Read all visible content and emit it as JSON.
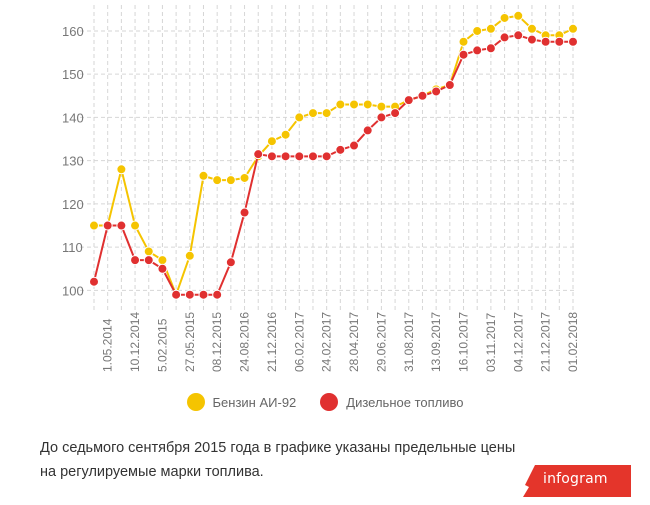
{
  "chart_data": {
    "type": "line",
    "ylim": [
      95,
      166
    ],
    "yticks": [
      100,
      110,
      120,
      130,
      140,
      150,
      160
    ],
    "x_tick_labels": [
      "1.05.2014",
      "10.12.2014",
      "5.02.2015",
      "27.05.2015",
      "08.12.2015",
      "24.08.2016",
      "21.12.2016",
      "06.02.2017",
      "24.02.2017",
      "28.04.2017",
      "29.06.2017",
      "31.08.2017",
      "13.09.2017",
      "16.10.2017",
      "03.11.2017",
      "04.12.2017",
      "21.12.2017",
      "01.02.2018"
    ],
    "grid": true,
    "legend_position": "bottom",
    "series": [
      {
        "name": "Бензин АИ-92",
        "color": "#f5c400",
        "values": [
          115,
          115,
          128,
          115,
          109,
          107,
          99,
          108,
          126.5,
          125.5,
          125.5,
          126,
          131,
          134.5,
          136,
          140,
          141,
          141,
          143,
          143,
          143,
          142.5,
          142.5,
          144,
          145,
          146.5,
          147.5,
          157.5,
          160,
          160.5,
          163,
          163.5,
          160.5,
          159,
          159,
          160.5
        ]
      },
      {
        "name": "Дизельное топливо",
        "color": "#e03030",
        "values": [
          102,
          115,
          115,
          107,
          107,
          105,
          99,
          99,
          99,
          99,
          106.5,
          118,
          131.5,
          131,
          131,
          131,
          131,
          131,
          132.5,
          133.5,
          137,
          140,
          141,
          144,
          145,
          146,
          147.5,
          154.5,
          155.5,
          156,
          158.5,
          159,
          158,
          157.5,
          157.5,
          157.5
        ]
      }
    ]
  },
  "legend": {
    "items": [
      {
        "label": "Бензин АИ-92",
        "color": "#f5c400"
      },
      {
        "label": "Дизельное топливо",
        "color": "#e03030"
      }
    ]
  },
  "caption": {
    "text_line1": "До седьмого сентября 2015 года в графике указаны предельные цены",
    "text_line2": "на регулируемые марки топлива."
  },
  "logo": {
    "text": "infogram",
    "color": "#e4352b"
  }
}
